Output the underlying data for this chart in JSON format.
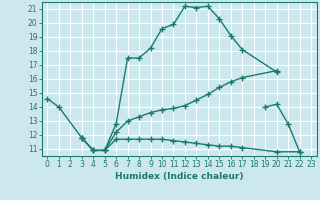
{
  "xlabel": "Humidex (Indice chaleur)",
  "bg_color": "#cce8ee",
  "line_color": "#1a7a6e",
  "grid_color": "#ffffff",
  "xlim": [
    -0.5,
    23.5
  ],
  "ylim": [
    10.5,
    21.5
  ],
  "xticks": [
    0,
    1,
    2,
    3,
    4,
    5,
    6,
    7,
    8,
    9,
    10,
    11,
    12,
    13,
    14,
    15,
    16,
    17,
    18,
    19,
    20,
    21,
    22,
    23
  ],
  "yticks": [
    11,
    12,
    13,
    14,
    15,
    16,
    17,
    18,
    19,
    20,
    21
  ],
  "lines": [
    {
      "x": [
        0,
        1,
        3,
        4,
        5,
        6,
        7,
        8,
        9,
        10,
        11,
        12,
        13,
        14,
        15,
        16,
        17,
        20
      ],
      "y": [
        14.6,
        14.0,
        11.8,
        10.9,
        10.9,
        12.8,
        17.5,
        17.5,
        18.2,
        19.6,
        19.9,
        21.2,
        21.1,
        21.2,
        20.3,
        19.1,
        18.1,
        16.5
      ]
    },
    {
      "x": [
        3,
        4,
        5,
        6,
        7,
        8,
        9,
        10,
        11,
        12,
        13,
        14,
        15,
        16,
        17,
        20
      ],
      "y": [
        11.8,
        10.9,
        10.9,
        12.2,
        13.0,
        13.3,
        13.6,
        13.8,
        13.9,
        14.1,
        14.5,
        14.9,
        15.4,
        15.8,
        16.1,
        16.6
      ]
    },
    {
      "x": [
        3,
        4,
        5,
        6,
        7,
        8,
        9,
        10,
        11,
        12,
        13,
        14,
        15,
        16,
        17,
        20,
        22
      ],
      "y": [
        11.8,
        10.9,
        10.9,
        11.7,
        11.7,
        11.7,
        11.7,
        11.7,
        11.6,
        11.5,
        11.4,
        11.3,
        11.2,
        11.2,
        11.1,
        10.8,
        10.8
      ]
    },
    {
      "x": [
        19,
        20,
        21,
        22
      ],
      "y": [
        14.0,
        14.2,
        12.8,
        10.8
      ]
    }
  ]
}
